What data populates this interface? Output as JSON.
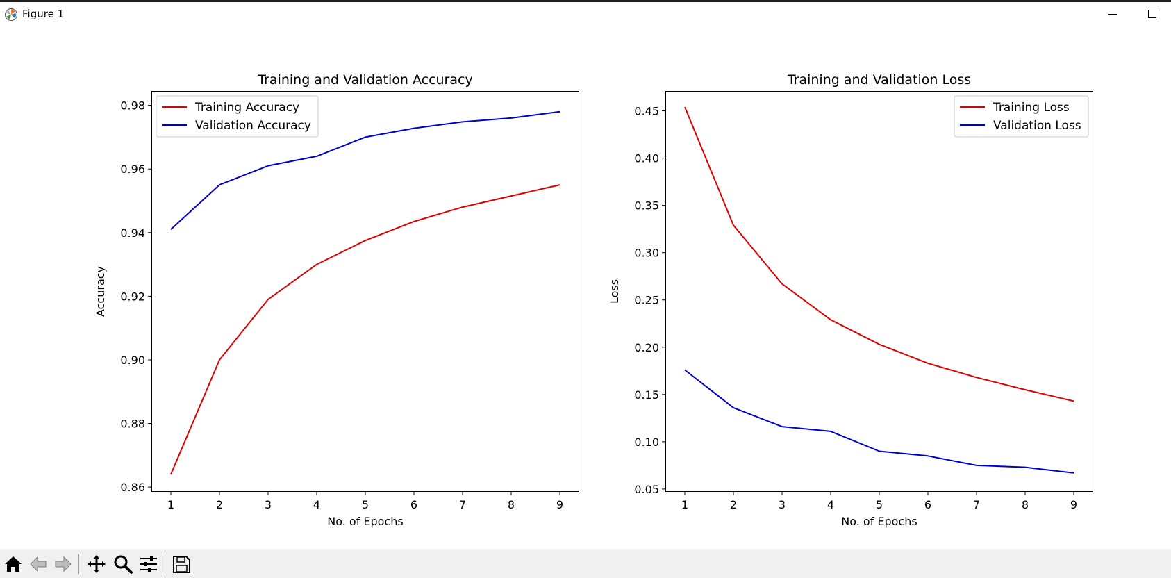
{
  "window": {
    "title": "Figure 1"
  },
  "toolbar": {
    "icons": [
      "home-icon",
      "back-icon",
      "forward-icon",
      "pan-icon",
      "zoom-icon",
      "configure-subplots-icon",
      "save-icon"
    ]
  },
  "colors": {
    "train": "#dd0000",
    "val": "#0000cc",
    "toolbar_bg": "#f0f0f0"
  },
  "chart_data": [
    {
      "type": "line",
      "title": "Training and Validation Accuracy",
      "xlabel": "No. of Epochs",
      "ylabel": "Accuracy",
      "x": [
        1,
        2,
        3,
        4,
        5,
        6,
        7,
        8,
        9
      ],
      "xlim": [
        0.6,
        9.4
      ],
      "ylim": [
        0.8585,
        0.9845
      ],
      "xticks": [
        1,
        2,
        3,
        4,
        5,
        6,
        7,
        8,
        9
      ],
      "yticks": [
        0.86,
        0.88,
        0.9,
        0.92,
        0.94,
        0.96,
        0.98
      ],
      "ytick_labels": [
        "0.86",
        "0.88",
        "0.90",
        "0.92",
        "0.94",
        "0.96",
        "0.98"
      ],
      "legend": "upper left",
      "grid": false,
      "series": [
        {
          "name": "Training Accuracy",
          "color": "#dd0000",
          "values": [
            0.864,
            0.9,
            0.919,
            0.93,
            0.9375,
            0.9435,
            0.948,
            0.9515,
            0.955
          ]
        },
        {
          "name": "Validation Accuracy",
          "color": "#0000cc",
          "values": [
            0.941,
            0.955,
            0.961,
            0.964,
            0.97,
            0.9728,
            0.9748,
            0.976,
            0.978
          ]
        }
      ]
    },
    {
      "type": "line",
      "title": "Training and Validation Loss",
      "xlabel": "No. of Epochs",
      "ylabel": "Loss",
      "x": [
        1,
        2,
        3,
        4,
        5,
        6,
        7,
        8,
        9
      ],
      "xlim": [
        0.6,
        9.4
      ],
      "ylim": [
        0.047,
        0.471
      ],
      "xticks": [
        1,
        2,
        3,
        4,
        5,
        6,
        7,
        8,
        9
      ],
      "yticks": [
        0.05,
        0.1,
        0.15,
        0.2,
        0.25,
        0.3,
        0.35,
        0.4,
        0.45
      ],
      "ytick_labels": [
        "0.05",
        "0.10",
        "0.15",
        "0.20",
        "0.25",
        "0.30",
        "0.35",
        "0.40",
        "0.45"
      ],
      "legend": "upper right",
      "grid": false,
      "series": [
        {
          "name": "Training Loss",
          "color": "#dd0000",
          "values": [
            0.454,
            0.329,
            0.267,
            0.229,
            0.203,
            0.183,
            0.168,
            0.155,
            0.143
          ]
        },
        {
          "name": "Validation Loss",
          "color": "#0000cc",
          "values": [
            0.176,
            0.136,
            0.116,
            0.111,
            0.09,
            0.085,
            0.075,
            0.073,
            0.067
          ]
        }
      ]
    }
  ]
}
